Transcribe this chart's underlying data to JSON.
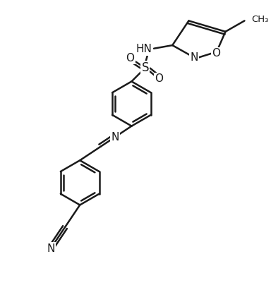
{
  "bg_color": "#ffffff",
  "line_color": "#1a1a1a",
  "het_color": "#1a1a1a",
  "bond_width": 1.8,
  "figsize": [
    3.84,
    4.01
  ],
  "dpi": 100,
  "xlim": [
    0,
    9.6
  ],
  "ylim": [
    0,
    10.025
  ]
}
